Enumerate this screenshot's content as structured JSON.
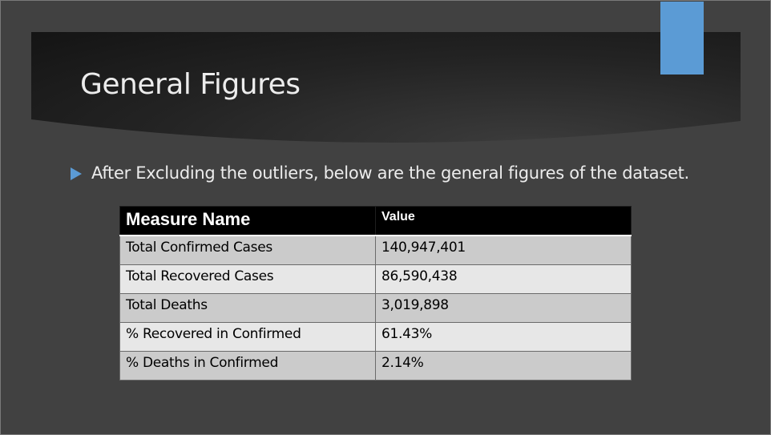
{
  "slide": {
    "title": "General Figures",
    "bullet": "After Excluding the outliers, below are the general figures of the dataset.",
    "accent_color": "#5b9bd5",
    "bullet_icon": "triangle-bullet-icon"
  },
  "table": {
    "headers": [
      "Measure Name",
      "Value"
    ],
    "rows": [
      [
        "Total Confirmed Cases",
        "140,947,401"
      ],
      [
        "Total Recovered Cases",
        "86,590,438"
      ],
      [
        "Total Deaths",
        "3,019,898"
      ],
      [
        "% Recovered in Confirmed",
        "61.43%"
      ],
      [
        "% Deaths in Confirmed",
        "2.14%"
      ]
    ]
  }
}
